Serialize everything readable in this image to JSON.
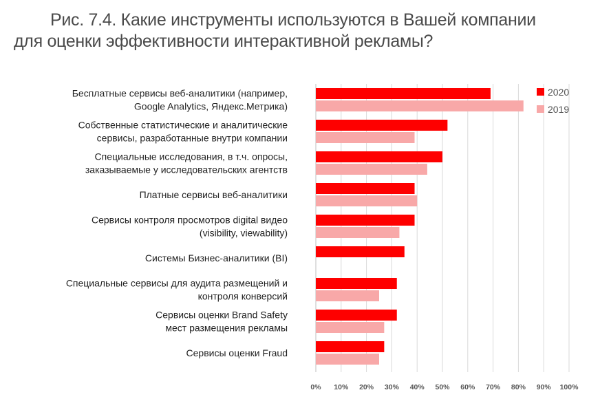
{
  "title_line1": "Рис. 7.4. Какие инструменты используются в Вашей компании",
  "title_line2": "для оценки эффективности интерактивной рекламы?",
  "colors": {
    "series_2020": "#fe0000",
    "series_2019": "#f8a8a8",
    "grid": "#d9d9d9"
  },
  "chart_data": {
    "type": "bar",
    "orientation": "horizontal",
    "title": "Рис. 7.4. Какие инструменты используются в Вашей компании для оценки эффективности интерактивной рекламы?",
    "categories": [
      [
        "Бесплатные сервисы веб-аналитики (например,",
        "Google Analytics, Яндекс.Метрика)"
      ],
      [
        "Собственные статистические и аналитические",
        "сервисы, разработанные внутри компании"
      ],
      [
        "Специальные исследования, в т.ч. опросы,",
        "заказываемые у исследовательских агентств"
      ],
      [
        "Платные сервисы веб-аналитики"
      ],
      [
        "Сервисы контроля просмотров digital видео",
        "(visibility, viewability)"
      ],
      [
        "Системы Бизнес-аналитики (BI)"
      ],
      [
        "Специальные сервисы для аудита размещений и",
        "контроля конверсий"
      ],
      [
        "Сервисы оценки Brand Safety",
        "мест размещения рекламы"
      ],
      [
        "Сервисы оценки Fraud"
      ]
    ],
    "series": [
      {
        "name": "2020",
        "values": [
          69,
          52,
          50,
          39,
          39,
          35,
          32,
          32,
          27
        ]
      },
      {
        "name": "2019",
        "values": [
          82,
          39,
          44,
          40,
          33,
          null,
          25,
          27,
          25
        ]
      }
    ],
    "xlim": [
      0,
      100
    ],
    "x_ticks": [
      "0%",
      "10%",
      "20%",
      "30%",
      "40%",
      "50%",
      "60%",
      "70%",
      "80%",
      "90%",
      "100%"
    ],
    "grid": true,
    "legend": "top-right"
  }
}
